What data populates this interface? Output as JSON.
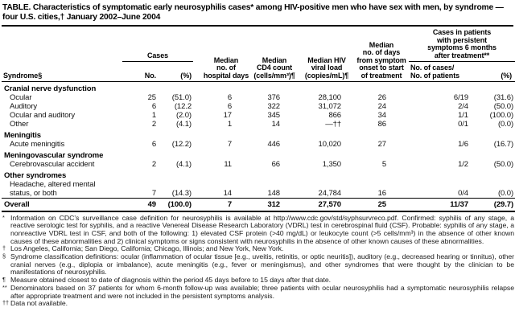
{
  "title": "TABLE. Characteristics of symptomatic early neurosyphilis cases* among HIV-positive men who have sex with men, by syndrome — four U.S. cities,† January 2002–June 2004",
  "header": {
    "syndrome": "Syndrome§",
    "cases_group": "Cases",
    "cases_no": "No.",
    "cases_pct": "(%)",
    "hospital_days": "Median\nno. of\nhospital days",
    "cd4": "Median\nCD4 count\n(cells/mm³)¶",
    "viral_load": "Median HIV\nviral load\n(copies/mL)¶",
    "days_to_treatment": "Median\nno. of days\nfrom symptom\nonset to start\nof treatment",
    "persistent_group": "Cases in patients\nwith persistent\nsymptoms 6 months\nafter treatment**",
    "persistent_ratio": "No. of cases/\nNo. of patients",
    "persistent_pct": "(%)"
  },
  "rows": [
    {
      "type": "group",
      "label": "Cranial nerve dysfunction"
    },
    {
      "type": "data",
      "label": "Ocular",
      "no": "25",
      "pct": "(51.0)",
      "hosp": "6",
      "cd4": "376",
      "viral": "28,100",
      "days": "26",
      "ratio": "6/19",
      "rpct": "(31.6)"
    },
    {
      "type": "data",
      "label": "Auditory",
      "no": "6",
      "pct": "(12.2",
      "hosp": "6",
      "cd4": "322",
      "viral": "31,072",
      "days": "24",
      "ratio": "2/4",
      "rpct": "(50.0)"
    },
    {
      "type": "data",
      "label": "Ocular and auditory",
      "no": "1",
      "pct": "(2.0)",
      "hosp": "17",
      "cd4": "345",
      "viral": "866",
      "days": "34",
      "ratio": "1/1",
      "rpct": "(100.0)"
    },
    {
      "type": "data",
      "label": "Other",
      "no": "2",
      "pct": "(4.1)",
      "hosp": "1",
      "cd4": "14",
      "viral": "—††",
      "days": "86",
      "ratio": "0/1",
      "rpct": "(0.0)"
    },
    {
      "type": "group",
      "label": "Meningitis"
    },
    {
      "type": "data",
      "label": "Acute meningitis",
      "no": "6",
      "pct": "(12.2)",
      "hosp": "7",
      "cd4": "446",
      "viral": "10,020",
      "days": "27",
      "ratio": "1/6",
      "rpct": "(16.7)"
    },
    {
      "type": "group",
      "label": "Meningovascular syndrome"
    },
    {
      "type": "data",
      "label": "Cerebrovascular accident",
      "no": "2",
      "pct": "(4.1)",
      "hosp": "11",
      "cd4": "66",
      "viral": "1,350",
      "days": "5",
      "ratio": "1/2",
      "rpct": "(50.0)"
    },
    {
      "type": "group",
      "label": "Other syndromes"
    },
    {
      "type": "data",
      "label": "Headache, altered mental\nstatus, or both",
      "no": "7",
      "pct": "(14.3)",
      "hosp": "14",
      "cd4": "148",
      "viral": "24,784",
      "days": "16",
      "ratio": "0/4",
      "rpct": "(0.0)"
    },
    {
      "type": "overall",
      "label": "Overall",
      "no": "49",
      "pct": "(100.0)",
      "hosp": "7",
      "cd4": "312",
      "viral": "27,570",
      "days": "25",
      "ratio": "11/37",
      "rpct": "(29.7)"
    }
  ],
  "footnotes": [
    {
      "marker": "*",
      "text": "Information on CDC’s surveillance case definition for neurosyphilis is available at http://www.cdc.gov/std/syphsurvreco.pdf. Confirmed: syphilis of any stage, a reactive serologic test for syphilis, and a reactive Venereal Disease Research Laboratory (VDRL) test in cerebrospinal fluid (CSF). Probable: syphilis of any stage, a nonreactive VDRL test in CSF, and both of the following: 1) elevated CSF protein (>40 mg/dL) or leukocyte count (>5 cells/mm³) in the absence of other known causes of these abnormalities and 2) clinical symptoms or signs consistent with neurosyphilis in the absence of other known causes of these abnormalities."
    },
    {
      "marker": "†",
      "text": "Los Angeles, California; San Diego, California; Chicago, Illinois; and New York, New York."
    },
    {
      "marker": "§",
      "text": "Syndrome classification definitions: ocular (inflammation of ocular tissue [e.g., uveitis, retinitis, or optic neuritis]), auditory (e.g., decreased hearing or tinnitus), other cranial nerves (e.g., diplopia or imbalance), acute meningitis (e.g., fever or meningismus), and other syndromes that were thought by the clinician to be manifestations of neurosyphilis."
    },
    {
      "marker": "¶",
      "text": "Measure obtained closest to date of diagnosis within the period 45 days before to 15 days after that date."
    },
    {
      "marker": "**",
      "text": "Denominators based on 37 patients for whom 6-month follow-up was available; three patients with ocular neurosyphilis had a symptomatic neurosyphilis relapse after appropriate treatment and were not included in the persistent symptoms analysis."
    },
    {
      "marker": "††",
      "text": "Data not available."
    }
  ]
}
